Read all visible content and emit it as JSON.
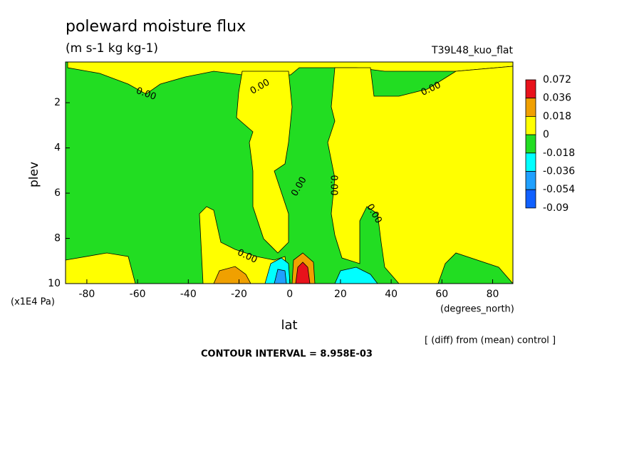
{
  "chart_data": {
    "type": "contour",
    "title": "poleward moisture flux",
    "subtitle": "(m s-1 kg kg-1)",
    "dataset": "T39L48_kuo_flat",
    "x_label": "lat",
    "x_units": "(degrees_north)",
    "y_label": "plev",
    "y_units": "(x1E4 Pa)",
    "xlim": [
      -88.4,
      88
    ],
    "xticks": [
      -80,
      -60,
      -40,
      -20,
      0,
      20,
      40,
      60,
      80
    ],
    "ylim": [
      10,
      0.2
    ],
    "yticks": [
      2,
      4,
      6,
      8,
      10
    ],
    "levels": [
      0.072,
      0.036,
      0.018,
      0,
      -0.018,
      -0.036,
      -0.054,
      -0.09
    ],
    "colors": [
      "#e8121b",
      "#f0a000",
      "#ffff00",
      "#22dd22",
      "#00ffff",
      "#1fa0ff",
      "#1060ff"
    ],
    "contour_labels": [
      "0.00",
      "0.00",
      "0.00",
      "0.00",
      "0.00",
      "0.00",
      "0.00"
    ],
    "footnote": "[ (diff) from (mean) control ]",
    "contour_interval": "CONTOUR INTERVAL = 8.958E-03"
  }
}
